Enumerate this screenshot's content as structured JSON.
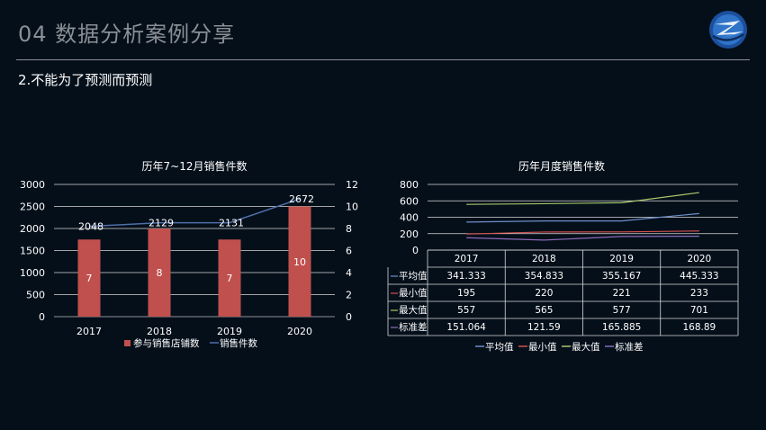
{
  "header": {
    "title": "04  数据分析案例分享",
    "subtitle": "2.不能为了预测而预测"
  },
  "chart_data": [
    {
      "type": "bar",
      "title": "历年7~12月销售件数",
      "categories": [
        "2017",
        "2018",
        "2019",
        "2020"
      ],
      "series": [
        {
          "name": "参与销售店铺数",
          "kind": "bar",
          "axis": "right",
          "values": [
            7,
            8,
            7,
            10
          ],
          "color": "#c0504d"
        },
        {
          "name": "销售件数",
          "kind": "line",
          "axis": "left",
          "values": [
            2048,
            2129,
            2131,
            2672
          ],
          "color": "#4f6fa8"
        }
      ],
      "y_left": {
        "ticks": [
          "0",
          "500",
          "1000",
          "1500",
          "2000",
          "2500",
          "3000"
        ],
        "ylim": [
          0,
          3000
        ]
      },
      "y_right": {
        "ticks": [
          "0",
          "2",
          "4",
          "6",
          "8",
          "10",
          "12"
        ],
        "ylim": [
          0,
          12
        ]
      },
      "grid": true,
      "legend_position": "bottom"
    },
    {
      "type": "line",
      "title": "历年月度销售件数",
      "categories": [
        "2017",
        "2018",
        "2019",
        "2020"
      ],
      "series": [
        {
          "name": "平均值",
          "values": [
            341.333,
            354.833,
            355.167,
            445.333
          ],
          "labels": [
            "341.333",
            "354.833",
            "355.167",
            "445.333"
          ],
          "color": "#6d8fc9"
        },
        {
          "name": "最小值",
          "values": [
            195,
            220,
            221,
            233
          ],
          "labels": [
            "195",
            "220",
            "221",
            "233"
          ],
          "color": "#d4504d"
        },
        {
          "name": "最大值",
          "values": [
            557,
            565,
            577,
            701
          ],
          "labels": [
            "557",
            "565",
            "577",
            "701"
          ],
          "color": "#a6c66a"
        },
        {
          "name": "标准差",
          "values": [
            151.064,
            121.59,
            165.885,
            168.89
          ],
          "labels": [
            "151.064",
            "121.59",
            "165.885",
            "168.89"
          ],
          "color": "#8c6bb8"
        }
      ],
      "y_ticks": [
        "0",
        "200",
        "400",
        "600",
        "800"
      ],
      "ylim": [
        0,
        800
      ],
      "grid": true,
      "legend_position": "bottom",
      "data_table": true
    }
  ]
}
